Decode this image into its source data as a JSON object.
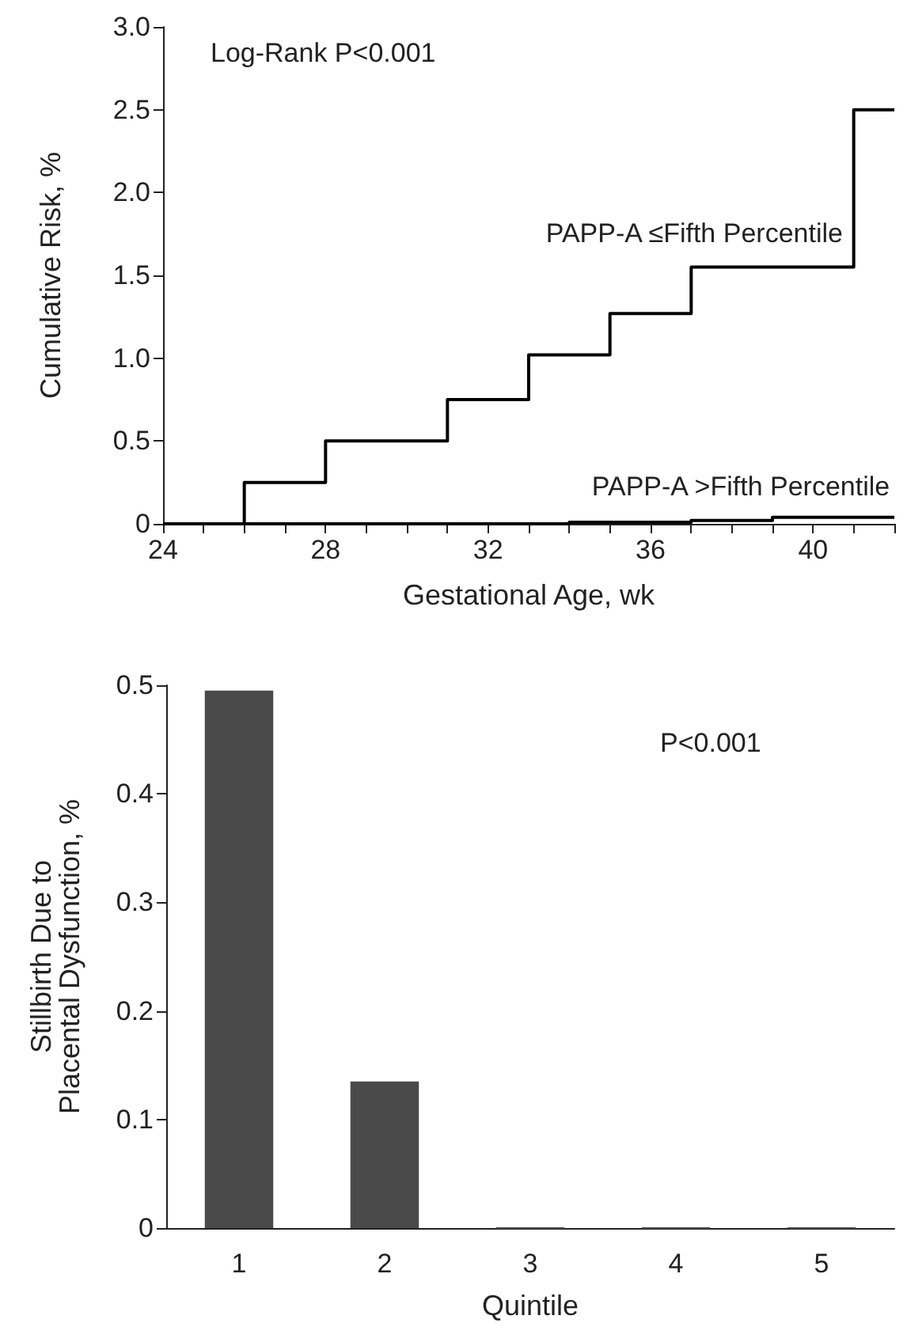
{
  "chart_data": [
    {
      "type": "step",
      "xlabel": "Gestational Age, wk",
      "ylabel": "Cumulative Risk, %",
      "annotations": [
        "Log-Rank P<0.001"
      ],
      "series": [
        {
          "name": "PAPP-A ≤Fifth Percentile",
          "color": "#000000",
          "x": [
            24,
            26,
            28,
            31,
            33,
            35,
            37,
            41,
            42
          ],
          "values": [
            0,
            0.25,
            0.5,
            0.75,
            1.02,
            1.27,
            1.55,
            2.5,
            2.5
          ]
        },
        {
          "name": "PAPP-A >Fifth Percentile",
          "color": "#000000",
          "x": [
            24,
            34,
            37,
            39,
            42
          ],
          "values": [
            0,
            0.01,
            0.02,
            0.04,
            0.04
          ]
        }
      ],
      "xlim": [
        24,
        42
      ],
      "xticks": [
        24,
        {
          "value": 25,
          "label": null
        },
        {
          "value": 26,
          "label": null
        },
        {
          "value": 27,
          "label": null
        },
        28,
        {
          "value": 29,
          "label": null
        },
        {
          "value": 30,
          "label": null
        },
        {
          "value": 31,
          "label": null
        },
        32,
        {
          "value": 33,
          "label": null
        },
        {
          "value": 34,
          "label": null
        },
        {
          "value": 35,
          "label": null
        },
        36,
        {
          "value": 37,
          "label": null
        },
        {
          "value": 38,
          "label": null
        },
        {
          "value": 39,
          "label": null
        },
        40,
        {
          "value": 41,
          "label": null
        },
        {
          "value": 42,
          "label": null
        }
      ],
      "ylim": [
        0,
        3
      ],
      "yticks": [
        0,
        {
          "value": 0.5,
          "label": "0.5"
        },
        {
          "value": 1,
          "label": "1.0"
        },
        {
          "value": 1.5,
          "label": "1.5"
        },
        {
          "value": 2,
          "label": "2.0"
        },
        {
          "value": 2.5,
          "label": "2.5"
        },
        {
          "value": 3,
          "label": "3.0"
        }
      ],
      "grid": false,
      "legend": false,
      "marker": "none",
      "line_style": "solid"
    },
    {
      "type": "bar",
      "xlabel": "Quintile",
      "ylabel": "Stillbirth Due to\nPlacental Dysfunction, %",
      "annotations": [
        "P<0.001"
      ],
      "categories": [
        "1",
        "2",
        "3",
        "4",
        "5"
      ],
      "values": [
        0.495,
        0.135,
        0,
        0,
        0
      ],
      "color": "#4a4a4a",
      "ylim": [
        0,
        0.5
      ],
      "yticks": [
        0,
        0.1,
        0.2,
        0.3,
        0.4,
        0.5
      ],
      "grid": false,
      "legend": false
    }
  ]
}
